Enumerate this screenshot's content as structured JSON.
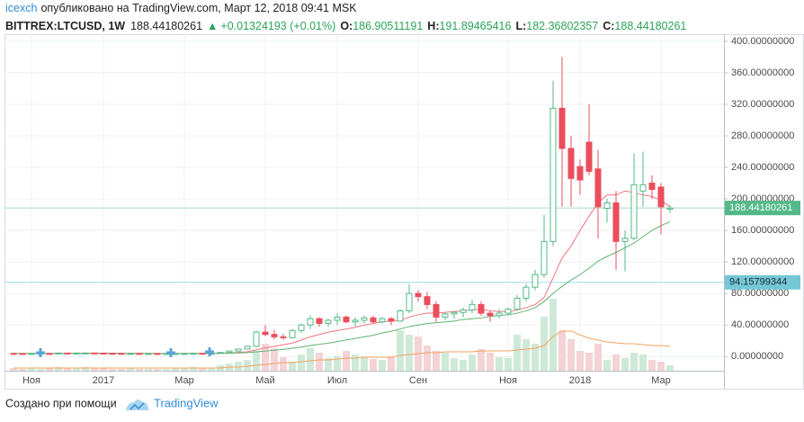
{
  "header": {
    "author": "icexch",
    "published": "опубликовано на TradingView.com, Март 12, 2018 09:41 MSK",
    "symbol": "BITTREX:LTCUSD, 1W",
    "last": "188.44180261",
    "change": "+0.01324193 (+0.01%)",
    "ohlc": [
      {
        "label": "O:",
        "value": "186.90511191"
      },
      {
        "label": "H:",
        "value": "191.89465416"
      },
      {
        "label": "L:",
        "value": "182.36802357"
      },
      {
        "label": "C:",
        "value": "188.44180261"
      }
    ]
  },
  "footer": {
    "created_with": "Создано при помощи",
    "brand": "TradingView"
  },
  "chart_data": {
    "type": "candlestick",
    "categories": [
      null,
      null,
      "Ноя",
      null,
      null,
      null,
      null,
      null,
      null,
      null,
      "2017",
      null,
      null,
      null,
      null,
      null,
      null,
      null,
      null,
      "Мар",
      null,
      null,
      null,
      null,
      null,
      null,
      null,
      null,
      "Май",
      null,
      null,
      null,
      null,
      null,
      null,
      null,
      "Июл",
      null,
      null,
      null,
      null,
      null,
      null,
      null,
      null,
      "Сен",
      null,
      null,
      null,
      null,
      null,
      null,
      null,
      null,
      null,
      "Ноя",
      null,
      null,
      null,
      null,
      null,
      null,
      null,
      "2018",
      null,
      null,
      null,
      null,
      null,
      null,
      null,
      null,
      "Мар",
      null
    ],
    "open": [
      3.9,
      3.8,
      3.7,
      3.9,
      3.9,
      3.8,
      4.4,
      4.3,
      4.4,
      4.5,
      4.3,
      4.0,
      3.9,
      3.8,
      3.9,
      3.8,
      3.8,
      3.7,
      3.8,
      3.8,
      3.9,
      4.1,
      4.0,
      4.0,
      5.2,
      7.0,
      9.5,
      13,
      31,
      28,
      25,
      24,
      33,
      40,
      48,
      42,
      46,
      50,
      44,
      46,
      49,
      44,
      48,
      45,
      58,
      80,
      76,
      66,
      50,
      54,
      56,
      59,
      66,
      55,
      52,
      55,
      60,
      74,
      88,
      104,
      146,
      315,
      264,
      241,
      272,
      238,
      188,
      195,
      146,
      150,
      210,
      220,
      215,
      186.90511191
    ],
    "high": [
      4.2,
      4.0,
      4.1,
      4.0,
      4.1,
      4.6,
      4.6,
      4.5,
      4.6,
      4.6,
      4.6,
      4.2,
      4.0,
      4.0,
      4.0,
      3.9,
      3.9,
      3.9,
      4.0,
      4.0,
      4.2,
      4.3,
      4.2,
      5.5,
      7.5,
      10,
      14,
      33,
      40,
      34,
      29,
      35,
      42,
      52,
      50,
      48,
      55,
      52,
      50,
      52,
      52,
      50,
      50,
      60,
      92,
      84,
      82,
      70,
      56,
      58,
      62,
      72,
      70,
      58,
      60,
      62,
      78,
      92,
      110,
      180,
      350,
      380,
      280,
      250,
      320,
      262,
      200,
      210,
      160,
      258,
      260,
      230,
      220,
      191.89465416
    ],
    "low": [
      3.6,
      3.6,
      3.6,
      3.8,
      3.7,
      3.7,
      4.2,
      4.1,
      4.2,
      4.2,
      3.9,
      3.8,
      3.7,
      3.6,
      3.7,
      3.7,
      3.6,
      3.6,
      3.7,
      3.7,
      3.8,
      3.9,
      3.9,
      3.9,
      5.0,
      6.8,
      9.0,
      12,
      26,
      22,
      21,
      23,
      30,
      35,
      38,
      38,
      40,
      42,
      38,
      42,
      42,
      42,
      40,
      44,
      55,
      70,
      60,
      44,
      46,
      48,
      50,
      55,
      52,
      44,
      48,
      52,
      58,
      70,
      84,
      100,
      140,
      190,
      190,
      205,
      230,
      150,
      170,
      110,
      108,
      148,
      190,
      200,
      155,
      182.36802357
    ],
    "close": [
      3.8,
      3.7,
      3.9,
      3.9,
      3.8,
      4.4,
      4.3,
      4.4,
      4.5,
      4.3,
      4.0,
      3.9,
      3.8,
      3.9,
      3.8,
      3.8,
      3.7,
      3.8,
      3.8,
      3.9,
      4.1,
      4.0,
      4.0,
      5.2,
      7.0,
      9.5,
      13,
      31,
      28,
      25,
      24,
      33,
      40,
      48,
      42,
      46,
      50,
      44,
      46,
      49,
      44,
      48,
      45,
      58,
      80,
      76,
      66,
      50,
      54,
      56,
      59,
      66,
      55,
      52,
      55,
      60,
      74,
      88,
      104,
      146,
      315,
      264,
      226,
      224,
      235,
      190,
      195,
      146,
      150,
      218,
      218,
      212,
      190,
      188.44180261
    ],
    "volume": [
      3,
      2,
      3,
      2,
      3,
      4,
      3,
      3,
      4,
      3,
      3,
      2,
      2,
      3,
      2,
      2,
      2,
      2,
      3,
      3,
      4,
      3,
      3,
      6,
      8,
      10,
      12,
      22,
      30,
      25,
      15,
      10,
      18,
      25,
      20,
      14,
      16,
      22,
      18,
      15,
      13,
      12,
      15,
      45,
      40,
      38,
      28,
      22,
      20,
      14,
      12,
      18,
      24,
      20,
      15,
      14,
      40,
      35,
      30,
      60,
      80,
      45,
      35,
      22,
      20,
      30,
      12,
      18,
      14,
      20,
      18,
      12,
      10,
      6
    ],
    "vlim": [
      0,
      100
    ],
    "up_color": "#53b987",
    "down_color": "#eb4d5c",
    "volume_up_color": "#cfe9d8",
    "volume_down_color": "#f3d3d6",
    "lines": [
      {
        "color": "#f2747e",
        "values": [
          4.0,
          3.9,
          3.9,
          3.9,
          3.9,
          3.9,
          4.0,
          4.0,
          4.1,
          4.2,
          4.2,
          4.2,
          4.1,
          4.1,
          4.0,
          4.0,
          3.9,
          3.9,
          3.8,
          3.8,
          3.8,
          3.9,
          3.9,
          4.3,
          4.6,
          5.2,
          6,
          8.5,
          11,
          13,
          15,
          17,
          21,
          25,
          28,
          31,
          33,
          35,
          37,
          40,
          42,
          44,
          45,
          46,
          50,
          53,
          55,
          55,
          56,
          57,
          58,
          59,
          60,
          58,
          57,
          57,
          59,
          62,
          66,
          75,
          100,
          125,
          140,
          160,
          178,
          195,
          205,
          205,
          210,
          208,
          205,
          203,
          198,
          190
        ]
      },
      {
        "color": "#5db36e",
        "values": [
          3.9,
          3.9,
          3.9,
          3.9,
          3.9,
          3.9,
          3.9,
          3.9,
          3.9,
          3.9,
          3.9,
          3.9,
          3.9,
          3.9,
          3.9,
          3.9,
          3.9,
          3.9,
          3.9,
          3.9,
          3.9,
          3.9,
          3.9,
          4,
          4.2,
          4.5,
          5,
          6,
          7,
          8,
          9,
          10.5,
          12,
          14,
          15.5,
          17,
          19,
          21,
          23,
          25,
          27,
          30,
          32,
          35,
          38,
          40,
          42,
          43,
          44,
          45,
          47,
          48,
          49,
          51,
          52,
          53,
          55,
          58,
          62,
          70,
          80,
          89,
          97,
          104,
          112,
          121,
          127,
          132,
          138,
          144,
          152,
          160,
          166,
          171
        ]
      }
    ],
    "volume_ma": {
      "color": "#f5a25d",
      "values": [
        3,
        3,
        3,
        3,
        3,
        3,
        3,
        3,
        3,
        3,
        3,
        3,
        3,
        3,
        3,
        3,
        3,
        3,
        3,
        3,
        3,
        3,
        3,
        3,
        4,
        4,
        5,
        6,
        7,
        8,
        9,
        9,
        10,
        11,
        12,
        12,
        13,
        14,
        14,
        15,
        15,
        15,
        15,
        17,
        18,
        19,
        20,
        20,
        21,
        21,
        21,
        21,
        22,
        22,
        22,
        22,
        23,
        24,
        25,
        28,
        38,
        44,
        44,
        40,
        36,
        34,
        32,
        31,
        30,
        30,
        29,
        28,
        28,
        27
      ]
    },
    "price_lines": [
      {
        "value": 188.44180261,
        "color": "#53b987",
        "line_color": "#a6dcbf",
        "text_color": "#ffffff"
      },
      {
        "value": 94.15799344,
        "color": "#74c8d6",
        "line_color": "#9fdbe5",
        "text_color": "#1b2b33"
      }
    ],
    "ylim": [
      -18,
      409
    ],
    "yticks": [
      {
        "value": 0,
        "label": "0.00000000"
      },
      {
        "value": 40,
        "label": "40.00000000"
      },
      {
        "value": 80,
        "label": "80.00000000"
      },
      {
        "value": 120,
        "label": "120.00000000"
      },
      {
        "value": 160,
        "label": "160.00000000"
      },
      {
        "value": 200,
        "label": "200.00000000"
      },
      {
        "value": 240,
        "label": "240.00000000"
      },
      {
        "value": 280,
        "label": "280.00000000"
      },
      {
        "value": 320,
        "label": "320.00000000"
      },
      {
        "value": 360,
        "label": "360.00000000"
      },
      {
        "value": 400,
        "label": "400.00000000"
      }
    ],
    "grid": true
  }
}
